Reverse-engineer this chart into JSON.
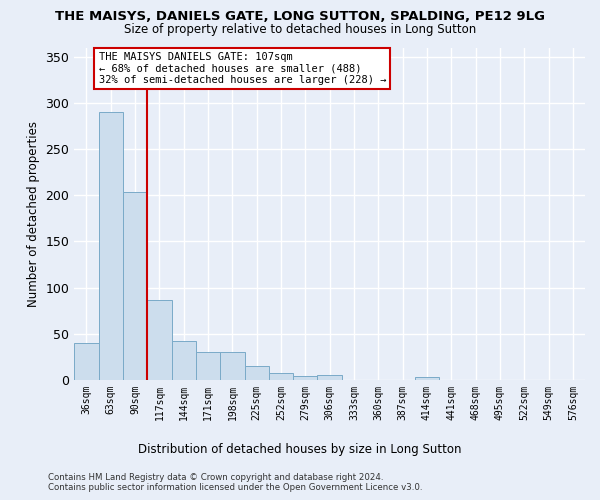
{
  "title": "THE MAISYS, DANIELS GATE, LONG SUTTON, SPALDING, PE12 9LG",
  "subtitle": "Size of property relative to detached houses in Long Sutton",
  "xlabel": "Distribution of detached houses by size in Long Sutton",
  "ylabel": "Number of detached properties",
  "categories": [
    "36sqm",
    "63sqm",
    "90sqm",
    "117sqm",
    "144sqm",
    "171sqm",
    "198sqm",
    "225sqm",
    "252sqm",
    "279sqm",
    "306sqm",
    "333sqm",
    "360sqm",
    "387sqm",
    "414sqm",
    "441sqm",
    "468sqm",
    "495sqm",
    "522sqm",
    "549sqm",
    "576sqm"
  ],
  "values": [
    40,
    290,
    203,
    87,
    42,
    30,
    30,
    15,
    8,
    4,
    5,
    0,
    0,
    0,
    3,
    0,
    0,
    0,
    0,
    0,
    0
  ],
  "bar_color": "#ccdded",
  "bar_edge_color": "#7aaac8",
  "annotation_text": "THE MAISYS DANIELS GATE: 107sqm\n← 68% of detached houses are smaller (488)\n32% of semi-detached houses are larger (228) →",
  "annotation_box_color": "#ffffff",
  "annotation_box_edge_color": "#cc0000",
  "vline_bin": 2.5,
  "ylim": [
    0,
    360
  ],
  "yticks": [
    0,
    50,
    100,
    150,
    200,
    250,
    300,
    350
  ],
  "footer1": "Contains HM Land Registry data © Crown copyright and database right 2024.",
  "footer2": "Contains public sector information licensed under the Open Government Licence v3.0.",
  "bg_color": "#e8eef8",
  "grid_color": "#ffffff",
  "vline_color": "#cc0000",
  "title_fontsize": 9.5,
  "subtitle_fontsize": 8.5,
  "xlabel_fontsize": 8.5,
  "ylabel_fontsize": 8.5,
  "tick_fontsize": 7.0,
  "annotation_fontsize": 7.5,
  "footer_fontsize": 6.2
}
